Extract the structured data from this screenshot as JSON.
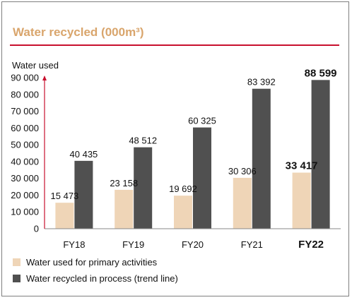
{
  "chart_data": {
    "type": "bar",
    "title": "Water recycled (000m³)",
    "ylabel": "Water used",
    "xlabel": "",
    "categories": [
      "FY18",
      "FY19",
      "FY20",
      "FY21",
      "FY22"
    ],
    "highlight_category": "FY22",
    "yticks": [
      "0",
      "10 000",
      "20 000",
      "30 000",
      "40 000",
      "50 000",
      "60 000",
      "70 000",
      "80 000",
      "90 000"
    ],
    "ylim": [
      0,
      90000
    ],
    "grid": false,
    "legend_position": "bottom-left",
    "series": [
      {
        "name": "Water used for primary activities",
        "color": "#efd5b7",
        "values": [
          15473,
          23158,
          19692,
          30306,
          33417
        ],
        "labels": [
          "15 473",
          "23 158",
          "19 692",
          "30 306",
          "33 417"
        ]
      },
      {
        "name": "Water recycled in process (trend line)",
        "color": "#505050",
        "values": [
          40435,
          48512,
          60325,
          83392,
          88599
        ],
        "labels": [
          "40 435",
          "48 512",
          "60 325",
          "83 392",
          "88 599"
        ]
      }
    ],
    "colors": {
      "axis_arrow": "#c8102e",
      "title": "#d9a56c",
      "rule": "#c8102e"
    }
  }
}
